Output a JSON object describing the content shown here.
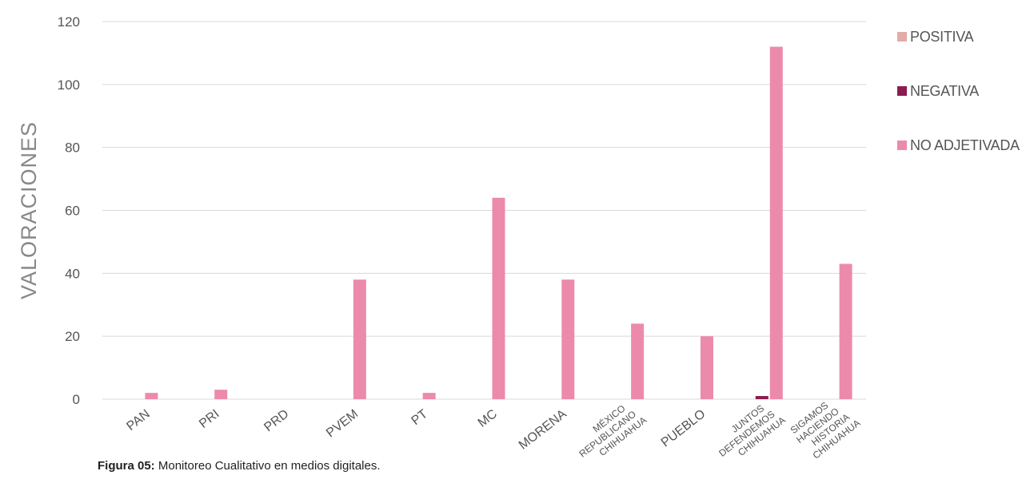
{
  "chart_data": {
    "type": "bar",
    "ylabel": "VALORACIONES",
    "xlabel": "",
    "ylim": [
      0,
      120
    ],
    "yticks": [
      0,
      20,
      40,
      60,
      80,
      100,
      120
    ],
    "grid": true,
    "legend_position": "right",
    "categories": [
      {
        "lines": [
          "PAN"
        ]
      },
      {
        "lines": [
          "PRI"
        ]
      },
      {
        "lines": [
          "PRD"
        ]
      },
      {
        "lines": [
          "PVEM"
        ]
      },
      {
        "lines": [
          "PT"
        ]
      },
      {
        "lines": [
          "MC"
        ]
      },
      {
        "lines": [
          "MORENA"
        ]
      },
      {
        "lines": [
          "MÉXICO",
          "REPUBLICANO",
          "CHIHUAHUA"
        ]
      },
      {
        "lines": [
          "PUEBLO"
        ]
      },
      {
        "lines": [
          "JUNTOS",
          "DEFENDEMOS",
          "CHIHUAHUA"
        ]
      },
      {
        "lines": [
          "SIGAMOS",
          "HACIENDO",
          "HISTORIA",
          "CHIHUAHUA"
        ]
      }
    ],
    "series": [
      {
        "name": "POSITIVA",
        "color": "#e2aca8",
        "values": [
          0,
          0,
          0,
          0,
          0,
          0,
          0,
          0,
          0,
          0,
          0
        ]
      },
      {
        "name": "NEGATIVA",
        "color": "#8b1c4e",
        "values": [
          0,
          0,
          0,
          0,
          0,
          0,
          0,
          0,
          0,
          1,
          0
        ]
      },
      {
        "name": "NO ADJETIVADA",
        "color": "#ec8aac",
        "values": [
          2,
          3,
          0,
          38,
          2,
          64,
          38,
          24,
          20,
          112,
          43
        ]
      }
    ]
  },
  "caption": {
    "label": "Figura 05:",
    "text": " Monitoreo Cualitativo en medios digitales."
  }
}
